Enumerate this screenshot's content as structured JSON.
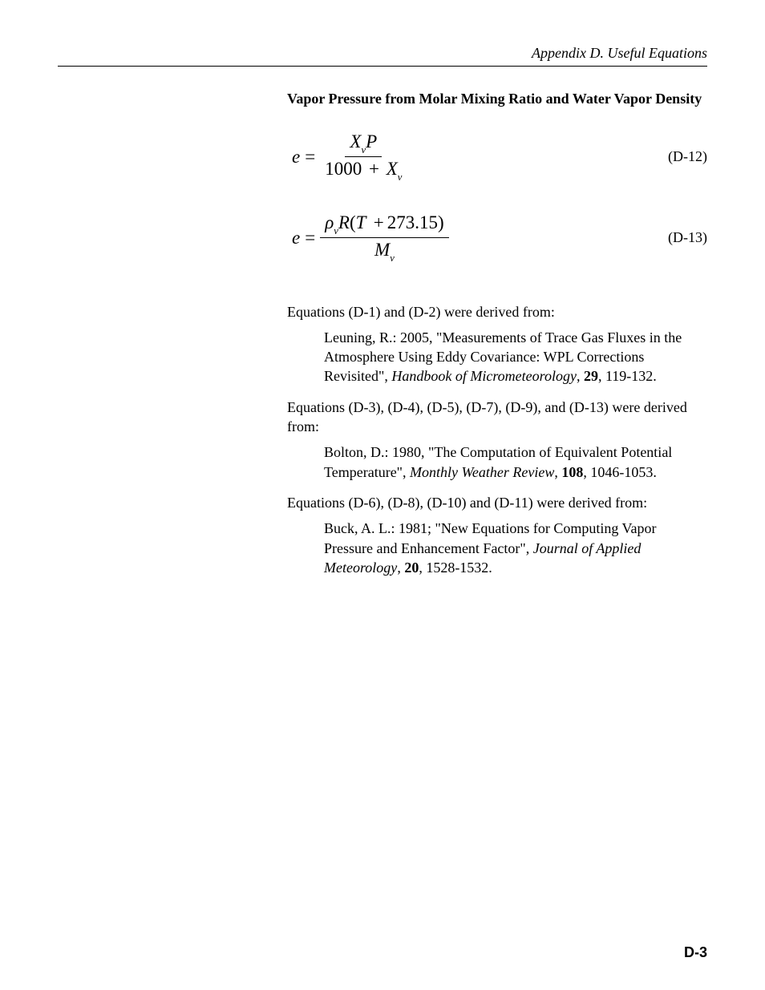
{
  "header": {
    "text": "Appendix D.  Useful Equations"
  },
  "section_title": "Vapor Pressure from Molar Mixing Ratio and Water Vapor Density",
  "eq12": {
    "lhs": "e",
    "num_pre": "X",
    "num_sub": "v",
    "num_post": "P",
    "den_pre": "1000",
    "den_plus": "+",
    "den_var": "X",
    "den_sub": "v",
    "number": "(D-12)"
  },
  "eq13": {
    "lhs": "e",
    "rho": "ρ",
    "rho_sub": "v",
    "R": "R",
    "paren_open": "(",
    "T": "T",
    "plus": "+",
    "const": "273.15",
    "paren_close": ")",
    "den_var": "M",
    "den_sub": "v",
    "number": "(D-13)"
  },
  "refs": {
    "intro1": "Equations (D-1) and (D-2) were derived from:",
    "ref1_a": "Leuning, R.: 2005, \"Measurements of Trace Gas Fluxes in the Atmosphere Using Eddy Covariance: WPL Corrections Revisited\", ",
    "ref1_journal": "Handbook of Micrometeorology",
    "ref1_b": ", ",
    "ref1_vol": "29",
    "ref1_c": ", 119-132.",
    "intro2": "Equations (D-3), (D-4), (D-5), (D-7), (D-9), and (D-13) were derived from:",
    "ref2_a": "Bolton, D.: 1980, \"The Computation of Equivalent Potential Temperature\", ",
    "ref2_journal": "Monthly Weather Review",
    "ref2_b": ", ",
    "ref2_vol": "108",
    "ref2_c": ", 1046-1053.",
    "intro3": "Equations (D-6), (D-8), (D-10) and (D-11) were derived from:",
    "ref3_a": "Buck, A. L.: 1981; \"New Equations for Computing Vapor Pressure and Enhancement Factor\", ",
    "ref3_journal": "Journal of Applied Meteorology",
    "ref3_b": ", ",
    "ref3_vol": "20",
    "ref3_c": ", 1528-1532."
  },
  "page_number": "D-3"
}
